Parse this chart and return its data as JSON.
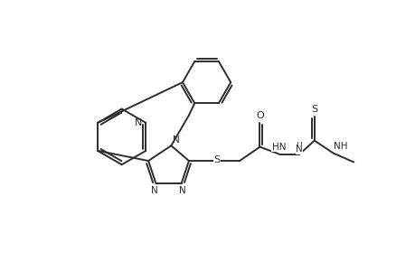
{
  "bg_color": "#ffffff",
  "line_color": "#2d2d2d",
  "line_width": 1.4,
  "figsize": [
    4.6,
    3.0
  ],
  "dpi": 100,
  "xlim": [
    -1.5,
    11.5
  ],
  "ylim": [
    -1.0,
    9.5
  ]
}
